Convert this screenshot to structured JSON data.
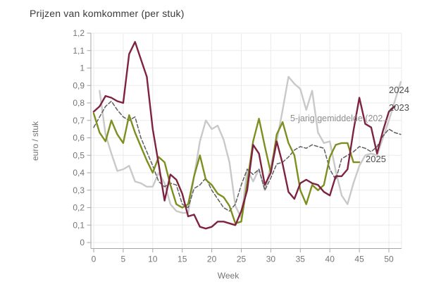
{
  "title": "Prijzen van komkommer (per stuk)",
  "y_axis": {
    "label": "euro / stuk",
    "tick_labels": [
      "0",
      "0,1",
      "0,2",
      "0,3",
      "0,4",
      "0,5",
      "0,6",
      "0,7",
      "0,8",
      "0,9",
      "1",
      "1,1",
      "1,2"
    ]
  },
  "x_axis": {
    "label": "Week",
    "tick_values": [
      0,
      5,
      10,
      15,
      20,
      25,
      30,
      35,
      40,
      45,
      50
    ]
  },
  "chart_data": {
    "type": "line",
    "title": "Prijzen van komkommer (per stuk)",
    "xlabel": "Week",
    "ylabel": "euro / stuk",
    "x_range": [
      0,
      52
    ],
    "ylim": [
      0,
      1.2
    ],
    "grid": true,
    "legend_position": "inline-end-of-line-labels",
    "grid_color": "#ebebeb",
    "axis_color": "#a6a6a6",
    "tick_text_color": "#757575",
    "series": [
      {
        "name": "2024",
        "color": "#c9c9c9",
        "style": "solid",
        "label_color": "#4d4d4d",
        "start_week": 1,
        "values": [
          0.87,
          0.62,
          0.51,
          0.41,
          0.42,
          0.44,
          0.35,
          0.34,
          0.32,
          0.32,
          0.4,
          0.34,
          0.22,
          0.18,
          0.17,
          0.17,
          0.38,
          0.58,
          0.7,
          0.65,
          0.67,
          0.59,
          0.46,
          0.21,
          0.14,
          0.42,
          0.35,
          0.42,
          0.3,
          0.44,
          0.58,
          0.76,
          0.95,
          0.91,
          0.88,
          0.76,
          0.87,
          0.63,
          0.57,
          0.58,
          0.41,
          0.27,
          0.22,
          0.34,
          0.44,
          0.5,
          0.51,
          0.5,
          0.6,
          0.7,
          0.81,
          0.92
        ]
      },
      {
        "name": "5-jarig gemiddelde (202..",
        "color": "#5f5f5f",
        "style": "dashed",
        "label_color": "#8f8f8f",
        "start_week": 0,
        "values": [
          0.66,
          0.72,
          0.78,
          0.81,
          0.76,
          0.72,
          0.7,
          0.72,
          0.6,
          0.52,
          0.44,
          0.35,
          0.32,
          0.34,
          0.33,
          0.22,
          0.2,
          0.31,
          0.33,
          0.37,
          0.3,
          0.25,
          0.2,
          0.18,
          0.22,
          0.33,
          0.42,
          0.39,
          0.42,
          0.3,
          0.37,
          0.45,
          0.46,
          0.49,
          0.53,
          0.55,
          0.54,
          0.56,
          0.55,
          0.54,
          0.42,
          0.36,
          0.48,
          0.5,
          0.52,
          0.55,
          0.54,
          0.52,
          0.55,
          0.61,
          0.65,
          0.63,
          0.62
        ]
      },
      {
        "name": "2025",
        "color": "#7e8e20",
        "style": "solid",
        "label_color": "#4d4d4d",
        "start_week": 0,
        "values": [
          0.74,
          0.63,
          0.58,
          0.7,
          0.62,
          0.57,
          0.73,
          0.63,
          0.55,
          0.47,
          0.4,
          0.49,
          0.46,
          0.33,
          0.22,
          0.2,
          0.22,
          0.38,
          0.5,
          0.36,
          0.33,
          0.28,
          0.26,
          0.21,
          0.11,
          0.12,
          0.34,
          0.58,
          0.71,
          0.55,
          0.4,
          0.62,
          0.69,
          0.57,
          0.5,
          0.3,
          0.22,
          0.33,
          0.3,
          0.33,
          0.49,
          0.56,
          0.57,
          0.57,
          0.46,
          0.46
        ]
      },
      {
        "name": "2023",
        "color": "#7d2340",
        "style": "solid",
        "label_color": "#4d4d4d",
        "start_week": 0,
        "values": [
          0.75,
          0.78,
          0.84,
          0.83,
          0.81,
          0.8,
          1.08,
          1.15,
          1.05,
          0.95,
          0.65,
          0.45,
          0.24,
          0.39,
          0.36,
          0.28,
          0.15,
          0.16,
          0.09,
          0.08,
          0.09,
          0.12,
          0.12,
          0.11,
          0.1,
          0.18,
          0.3,
          0.56,
          0.51,
          0.33,
          0.4,
          0.58,
          0.45,
          0.29,
          0.25,
          0.34,
          0.36,
          0.34,
          0.33,
          0.29,
          0.27,
          0.38,
          0.38,
          0.42,
          0.64,
          0.83,
          0.68,
          0.66,
          0.51,
          0.64,
          0.75,
          0.78
        ]
      }
    ]
  }
}
